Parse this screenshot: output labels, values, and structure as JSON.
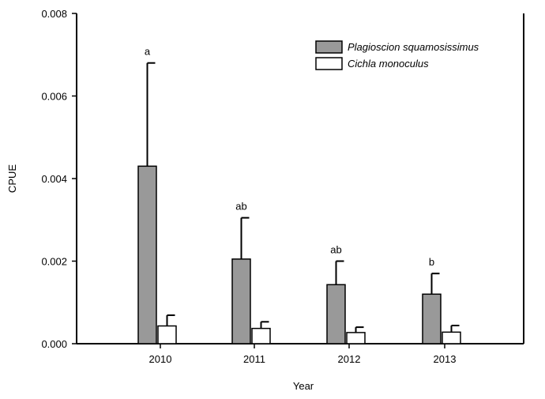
{
  "chart_data": {
    "type": "bar",
    "title": "",
    "xlabel": "Year",
    "ylabel": "CPUE",
    "categories": [
      "2010",
      "2011",
      "2012",
      "2013"
    ],
    "ylim": [
      0,
      0.008
    ],
    "yticks": [
      0.0,
      0.002,
      0.004,
      0.006,
      0.008
    ],
    "ytick_labels": [
      "0.000",
      "0.002",
      "0.004",
      "0.006",
      "0.008"
    ],
    "grid": false,
    "legend_position": "top-right",
    "series": [
      {
        "name": "Plagioscion squamosissimus",
        "color": "#999999",
        "values": [
          0.0043,
          0.00205,
          0.00143,
          0.0012
        ],
        "errors": [
          0.0025,
          0.001,
          0.00057,
          0.0005
        ],
        "labels": [
          "a",
          "ab",
          "ab",
          "b"
        ]
      },
      {
        "name": "Cichla monoculus",
        "color": "#ffffff",
        "values": [
          0.00043,
          0.00037,
          0.00027,
          0.00028
        ],
        "errors": [
          0.00026,
          0.00016,
          0.00013,
          0.00016
        ],
        "labels": [
          "",
          "",
          "",
          ""
        ]
      }
    ]
  }
}
